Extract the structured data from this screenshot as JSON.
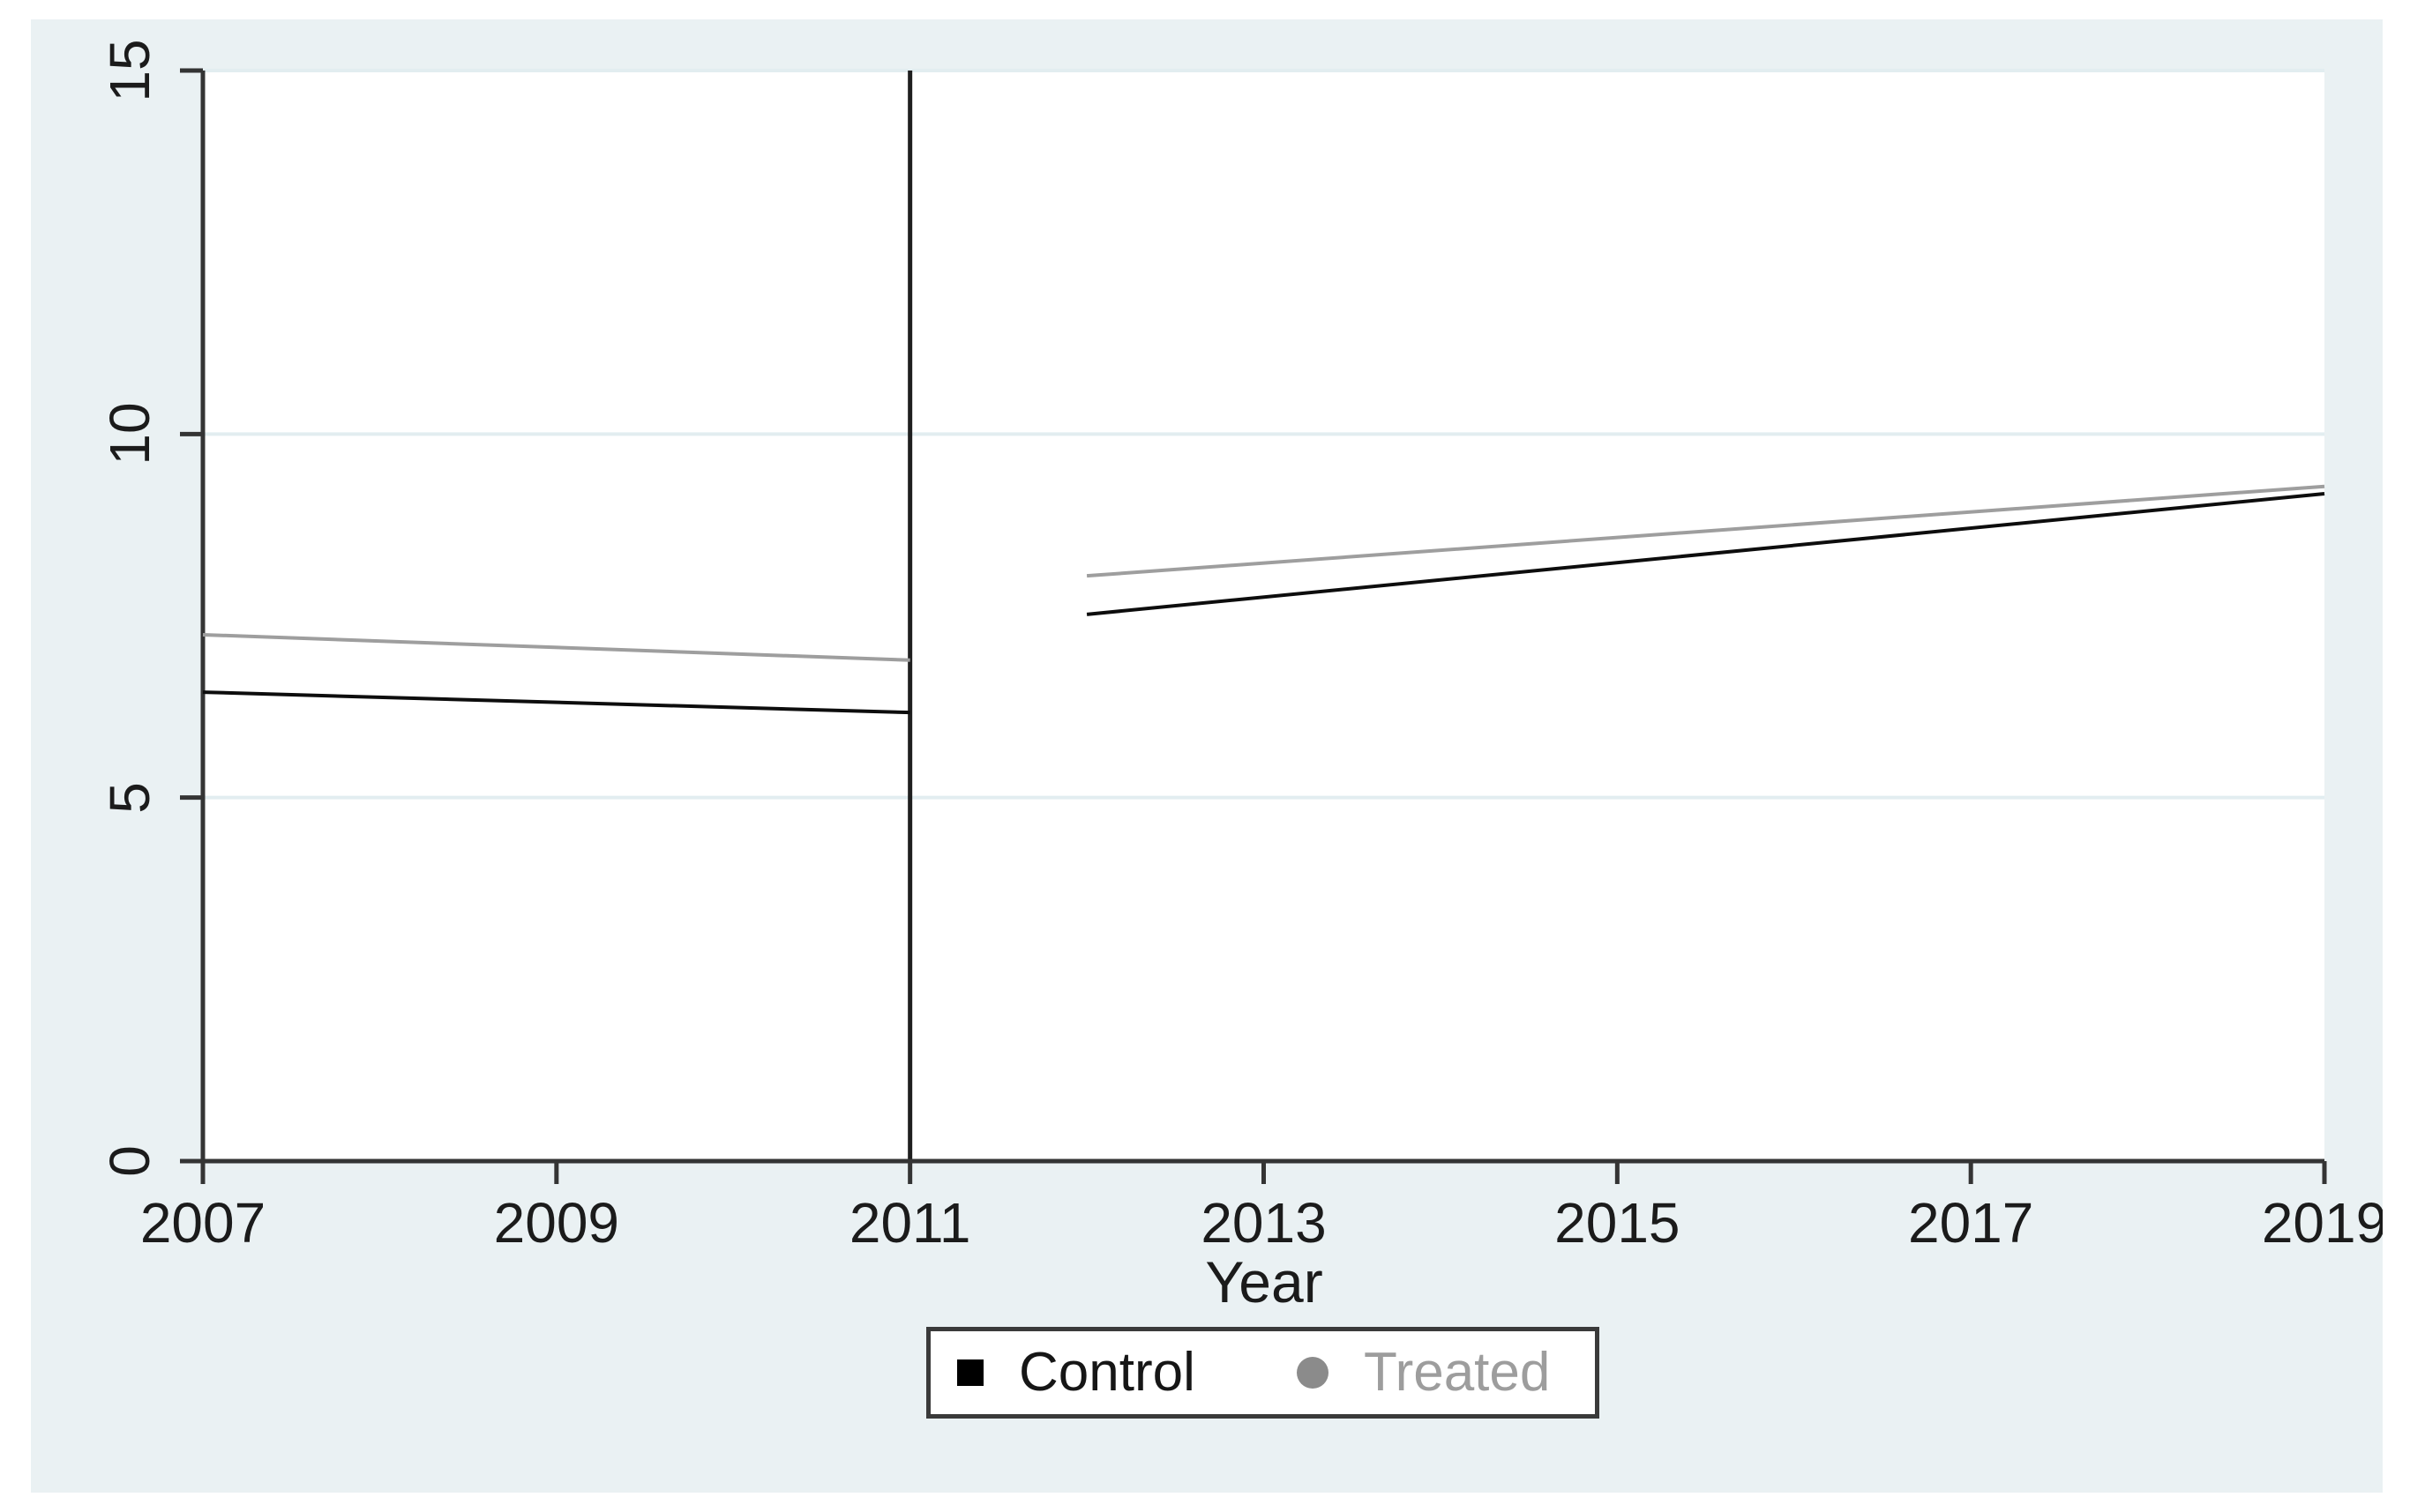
{
  "figure": {
    "background_color": "#eaf1f3",
    "plot_background_color": "#ffffff",
    "grid_color": "#e2edf0",
    "axis_color": "#343434",
    "text_color": "#1b1b1b"
  },
  "chart_data": {
    "type": "line",
    "xlabel": "Year",
    "ylabel": "",
    "xlim": [
      2007,
      2019
    ],
    "ylim": [
      0,
      15
    ],
    "x_ticks": [
      "2007",
      "2009",
      "2011",
      "2013",
      "2015",
      "2017",
      "2019"
    ],
    "y_ticks": [
      "0",
      "5",
      "10",
      "15"
    ],
    "grid": "horizontal-only",
    "reference_line_x": 2011,
    "reference_line_color": "#1f1f1f",
    "legend_position": "bottom-center",
    "series": [
      {
        "name": "Control",
        "color": "#0d0d0d",
        "segments": [
          {
            "x": [
              2007,
              2011
            ],
            "y": [
              6.45,
              6.17
            ]
          },
          {
            "x": [
              2012,
              2019
            ],
            "y": [
              7.52,
              9.18
            ]
          }
        ]
      },
      {
        "name": "Treated",
        "color": "#9e9e9e",
        "segments": [
          {
            "x": [
              2007,
              2011
            ],
            "y": [
              7.24,
              6.89
            ]
          },
          {
            "x": [
              2012,
              2019
            ],
            "y": [
              8.05,
              9.28
            ]
          }
        ]
      }
    ],
    "legend": [
      {
        "label": "Control",
        "marker": "square",
        "marker_color": "#000000",
        "text_color": "#161616"
      },
      {
        "label": "Treated",
        "marker": "circle",
        "marker_color": "#8b8b8b",
        "text_color": "#9d9d9d"
      }
    ]
  }
}
